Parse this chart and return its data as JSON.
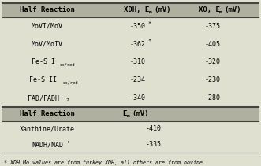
{
  "bg_color": "#e0e0d0",
  "header_bg": "#b0b0a0",
  "line_color": "#444444",
  "col1_label": "Half Reaction",
  "col2_label": "XDH, E",
  "col2_sub": "m",
  "col2_unit": " (mV)",
  "col3_label": "XO, E",
  "col3_sub": "m",
  "col3_unit": " (mV)",
  "t1_rows": [
    {
      "label": "MoVI/MoV",
      "label_sub": "",
      "label_sub_text": "",
      "xdh": "-350",
      "xdh_star": true,
      "xo": "-375"
    },
    {
      "label": "MoV/MoIV",
      "label_sub": "",
      "label_sub_text": "",
      "xdh": "-362",
      "xdh_star": true,
      "xo": "-405"
    },
    {
      "label": "Fe-S I",
      "label_sub": "ox/red",
      "label_sub_text": "ox/red",
      "xdh": "-310",
      "xdh_star": false,
      "xo": "-320"
    },
    {
      "label": "Fe-S II",
      "label_sub": "ox/red",
      "label_sub_text": "ox/red",
      "xdh": "-234",
      "xdh_star": false,
      "xo": "-230"
    },
    {
      "label": "FAD/FADH",
      "label_sub": "2",
      "label_sub_text": "2",
      "xdh": "-340",
      "xdh_star": false,
      "xo": "-280"
    }
  ],
  "t2_col1_label": "Half Reaction",
  "t2_col2_label": "E",
  "t2_col2_sub": "m",
  "t2_col2_unit": " (mV)",
  "t2_rows": [
    {
      "label": "Xanthine/Urate",
      "label_sup": "",
      "em": "-410"
    },
    {
      "label": "NADH/NAD",
      "label_sup": "+",
      "em": "-335"
    }
  ],
  "footnote": "* XDH Mo values are from turkey XDH, all others are from bovine",
  "header_fs": 6.5,
  "body_fs": 6.0,
  "footnote_fs": 4.8,
  "sub_fs": 4.5,
  "sup_fs": 4.0
}
